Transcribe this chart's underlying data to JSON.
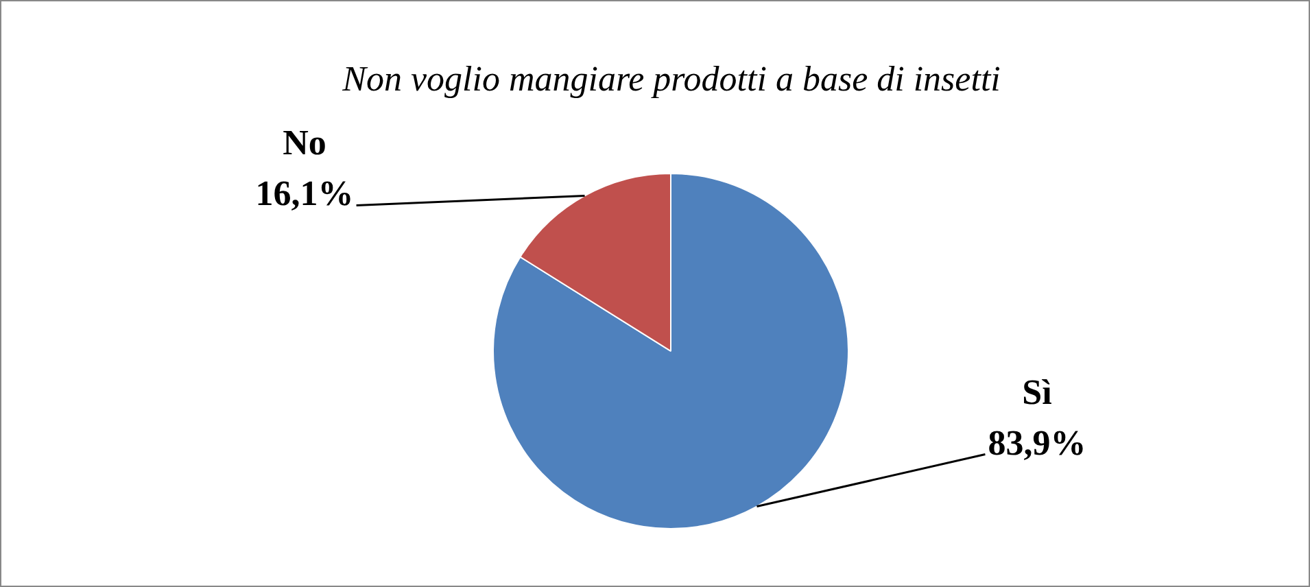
{
  "chart_data": {
    "type": "pie",
    "title": "Non voglio mangiare prodotti a base di insetti",
    "categories": [
      "Sì",
      "No"
    ],
    "values": [
      83.9,
      16.1
    ],
    "value_labels": [
      "83,9%",
      "16,1%"
    ],
    "colors": [
      "#4f81bd",
      "#c0504d"
    ],
    "legend": false
  }
}
